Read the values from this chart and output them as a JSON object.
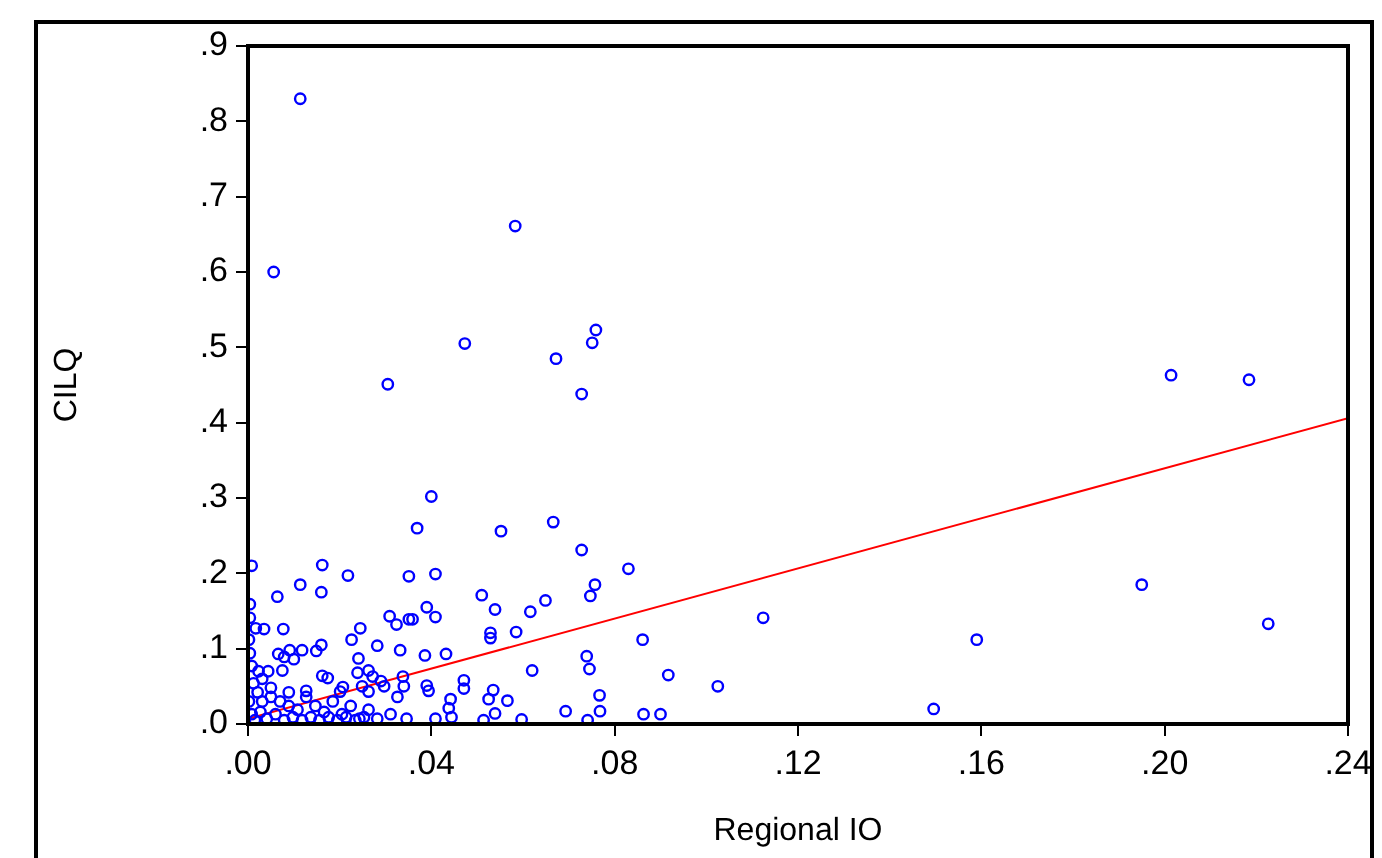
{
  "chart_data": {
    "type": "scatter",
    "xlabel": "Regional IO",
    "ylabel": "CILQ",
    "grid": false,
    "marker": "circle",
    "legend": false,
    "xlim": [
      0,
      0.24
    ],
    "ylim": [
      0,
      0.9
    ],
    "xticks": [
      {
        "value": 0,
        "label": ".00"
      },
      {
        "value": 0.04,
        "label": ".04"
      },
      {
        "value": 0.08,
        "label": ".08"
      },
      {
        "value": 0.12,
        "label": ".12"
      },
      {
        "value": 0.16,
        "label": ".16"
      },
      {
        "value": 0.2,
        "label": ".20"
      },
      {
        "value": 0.24,
        "label": ".24"
      }
    ],
    "yticks": [
      {
        "value": 0,
        "label": ".0"
      },
      {
        "value": 0.1,
        "label": ".1"
      },
      {
        "value": 0.2,
        "label": ".2"
      },
      {
        "value": 0.3,
        "label": ".3"
      },
      {
        "value": 0.4,
        "label": ".4"
      },
      {
        "value": 0.5,
        "label": ".5"
      },
      {
        "value": 0.6,
        "label": ".6"
      },
      {
        "value": 0.7,
        "label": ".7"
      },
      {
        "value": 0.8,
        "label": ".8"
      },
      {
        "value": 0.9,
        "label": ".9"
      }
    ],
    "series": [
      {
        "color": "#0000ff",
        "x": [
          0.0114,
          0.0056,
          0.0583,
          0.0305,
          0.0473,
          0.0759,
          0.0751,
          0.0672,
          0.0728,
          0.2014,
          0.2184,
          0.195,
          0.2226,
          0.159,
          0.1496,
          0.1124,
          0.1025,
          0.0917,
          0.09,
          0.0863,
          0.0861,
          0.083,
          0.0757,
          0.0747,
          0.0728,
          0.0666,
          0.0649,
          0.0616,
          0.0585,
          0.0539,
          0.051,
          0.0552,
          0.04,
          0.0369,
          0.0351,
          0.0409,
          0.039,
          0.0409,
          0.0359,
          0.0351,
          0.0309,
          0.0324,
          0.0282,
          0.0332,
          0.0386,
          0.0432,
          0.0529,
          0.0529,
          0.0739,
          0.0745,
          0.062,
          0.0767,
          0.0768,
          0.0741,
          0.0693,
          0.0597,
          0.0566,
          0.0535,
          0.0525,
          0.0539,
          0.0514,
          0.0471,
          0.0471,
          0.0442,
          0.0438,
          0.0444,
          0.039,
          0.0394,
          0.0409,
          0.0338,
          0.034,
          0.0326,
          0.0346,
          0.0311,
          0.0245,
          0.0241,
          0.0226,
          0.0218,
          0.0162,
          0.016,
          0.0114,
          0.0064,
          0.0008,
          0.0004,
          0.0077,
          0.0035,
          0.0017,
          0.016,
          0.0149,
          0.0118,
          0.0091,
          0.0066,
          0.01,
          0.0079,
          0.0023,
          0.0075,
          0.0044,
          0.0162,
          0.0174,
          0.0239,
          0.0263,
          0.0272,
          0.029,
          0.0249,
          0.0263,
          0.0297,
          0.0207,
          0.0201,
          0.0008,
          0.0004,
          0.0002,
          0.0004,
          0.0012,
          0.0021,
          0.0031,
          0.005,
          0.007,
          0.0089,
          0.0108,
          0.0127,
          0.0147,
          0.0166,
          0.0185,
          0.0205,
          0.0224,
          0.0243,
          0.0263,
          0.0282,
          0.0008,
          0.0015,
          0.0027,
          0.0041,
          0.006,
          0.0079,
          0.0098,
          0.0118,
          0.0137,
          0.0156,
          0.0176,
          0.0195,
          0.0214,
          0.0234,
          0.0253,
          0.0031,
          0.005,
          0.0089,
          0.0127,
          0.0002
        ],
        "values": [
          0.83,
          0.6,
          0.661,
          0.451,
          0.505,
          0.523,
          0.506,
          0.485,
          0.438,
          0.463,
          0.457,
          0.185,
          0.133,
          0.112,
          0.02,
          0.141,
          0.05,
          0.065,
          0.013,
          0.013,
          0.112,
          0.206,
          0.185,
          0.17,
          0.231,
          0.268,
          0.164,
          0.149,
          0.122,
          0.152,
          0.171,
          0.256,
          0.302,
          0.26,
          0.196,
          0.199,
          0.155,
          0.142,
          0.139,
          0.139,
          0.143,
          0.132,
          0.104,
          0.098,
          0.091,
          0.093,
          0.121,
          0.114,
          0.09,
          0.073,
          0.071,
          0.038,
          0.017,
          0.005,
          0.017,
          0.006,
          0.031,
          0.045,
          0.033,
          0.014,
          0.005,
          0.058,
          0.047,
          0.033,
          0.021,
          0.009,
          0.051,
          0.044,
          0.007,
          0.063,
          0.05,
          0.036,
          0.007,
          0.013,
          0.127,
          0.087,
          0.112,
          0.197,
          0.211,
          0.175,
          0.185,
          0.169,
          0.21,
          0.159,
          0.126,
          0.126,
          0.127,
          0.105,
          0.097,
          0.098,
          0.098,
          0.093,
          0.086,
          0.089,
          0.07,
          0.071,
          0.07,
          0.064,
          0.061,
          0.068,
          0.071,
          0.063,
          0.057,
          0.05,
          0.043,
          0.05,
          0.049,
          0.043,
          0.077,
          0.094,
          0.112,
          0.141,
          0.054,
          0.042,
          0.03,
          0.036,
          0.03,
          0.024,
          0.019,
          0.036,
          0.024,
          0.016,
          0.03,
          0.013,
          0.024,
          0.007,
          0.019,
          0.007,
          0.013,
          0.005,
          0.016,
          0.007,
          0.013,
          0.005,
          0.009,
          0.005,
          0.009,
          0.005,
          0.009,
          0.005,
          0.009,
          0.005,
          0.009,
          0.06,
          0.048,
          0.042,
          0.044,
          0.03
        ]
      },
      {
        "type": "line",
        "color": "#ff0000",
        "marker": "none",
        "x": [
          0,
          0.24
        ],
        "values": [
          0.007,
          0.406
        ]
      }
    ]
  }
}
